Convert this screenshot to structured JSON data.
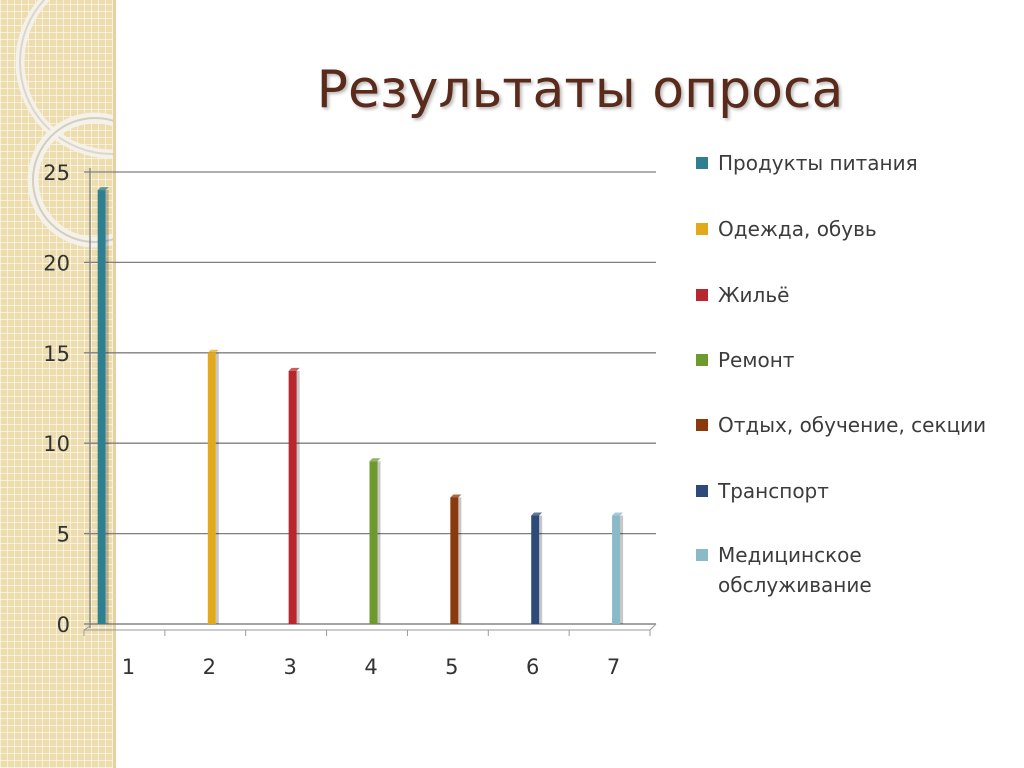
{
  "slide": {
    "title": "Результаты опроса"
  },
  "chart_data": {
    "type": "bar",
    "categories": [
      "1",
      "2",
      "3",
      "4",
      "5",
      "6",
      "7"
    ],
    "values": [
      24,
      15,
      14,
      9,
      7,
      6,
      6
    ],
    "ylim": [
      0,
      25
    ],
    "yticks": [
      0,
      5,
      10,
      15,
      20,
      25
    ],
    "grid": true,
    "legend_position": "right",
    "legend": [
      {
        "label": "Продукты питания",
        "color": "#2e7f90"
      },
      {
        "label": "Одежда, обувь",
        "color": "#e3a91d"
      },
      {
        "label": "Жильё",
        "color": "#b8262e"
      },
      {
        "label": "Ремонт",
        "color": "#6c9a2e"
      },
      {
        "label": "Отдых, обучение, секции",
        "color": "#8a3a0c"
      },
      {
        "label": "Транспорт",
        "color": "#2e4a7a"
      },
      {
        "label": "Медицинское обслуживание",
        "color": "#8ab9c8"
      }
    ]
  }
}
